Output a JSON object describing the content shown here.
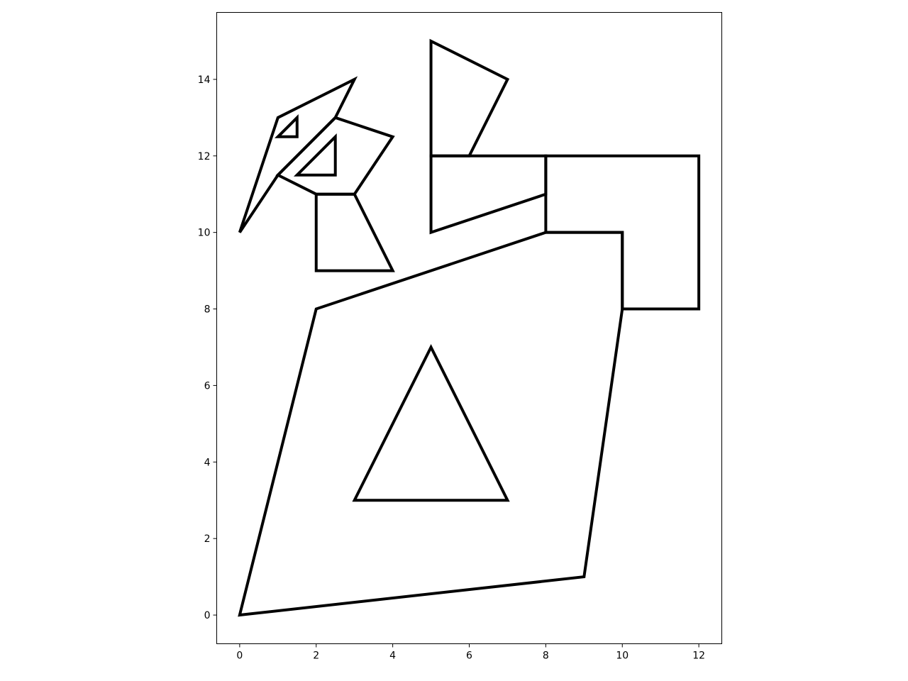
{
  "chart_data": {
    "type": "polygon-outline",
    "xlim": [
      -0.6,
      12.6
    ],
    "ylim": [
      -0.75,
      15.75
    ],
    "grid": false,
    "x_ticks": [
      {
        "value": 0,
        "label": "0"
      },
      {
        "value": 2,
        "label": "2"
      },
      {
        "value": 4,
        "label": "4"
      },
      {
        "value": 6,
        "label": "6"
      },
      {
        "value": 8,
        "label": "8"
      },
      {
        "value": 10,
        "label": "10"
      },
      {
        "value": 12,
        "label": "12"
      }
    ],
    "y_ticks": [
      {
        "value": 0,
        "label": "0"
      },
      {
        "value": 2,
        "label": "2"
      },
      {
        "value": 4,
        "label": "4"
      },
      {
        "value": 6,
        "label": "6"
      },
      {
        "value": 8,
        "label": "8"
      },
      {
        "value": 10,
        "label": "10"
      },
      {
        "value": 12,
        "label": "12"
      },
      {
        "value": 14,
        "label": "14"
      }
    ],
    "polygons": [
      {
        "name": "body",
        "points": [
          [
            0,
            0
          ],
          [
            9,
            1
          ],
          [
            10,
            8
          ],
          [
            10,
            10
          ],
          [
            8,
            10
          ],
          [
            2,
            8
          ]
        ]
      },
      {
        "name": "inner-triangle",
        "points": [
          [
            3,
            3
          ],
          [
            7,
            3
          ],
          [
            5,
            7
          ]
        ]
      },
      {
        "name": "tail",
        "points": [
          [
            8,
            12
          ],
          [
            12,
            12
          ],
          [
            12,
            8
          ],
          [
            10,
            8
          ],
          [
            10,
            10
          ],
          [
            8,
            10
          ]
        ]
      },
      {
        "name": "wing-quad",
        "points": [
          [
            5,
            12
          ],
          [
            8,
            12
          ],
          [
            8,
            11
          ],
          [
            5,
            10
          ]
        ]
      },
      {
        "name": "wing-top",
        "points": [
          [
            5,
            12
          ],
          [
            6,
            12
          ],
          [
            7,
            14
          ],
          [
            5,
            15
          ]
        ]
      },
      {
        "name": "neck",
        "points": [
          [
            2,
            9
          ],
          [
            4,
            9
          ],
          [
            3,
            11
          ],
          [
            2,
            11
          ]
        ]
      },
      {
        "name": "head",
        "points": [
          [
            2,
            11
          ],
          [
            3,
            11
          ],
          [
            4,
            12.5
          ],
          [
            2.5,
            13
          ],
          [
            1,
            11.5
          ]
        ]
      },
      {
        "name": "head-triangle",
        "points": [
          [
            1.5,
            11.5
          ],
          [
            2.5,
            11.5
          ],
          [
            2.5,
            12.5
          ]
        ]
      },
      {
        "name": "beak",
        "points": [
          [
            0,
            10
          ],
          [
            1,
            11.5
          ],
          [
            2.5,
            13
          ],
          [
            3,
            14
          ],
          [
            1,
            13
          ]
        ]
      },
      {
        "name": "eye",
        "points": [
          [
            1,
            12.5
          ],
          [
            1.5,
            12.5
          ],
          [
            1.5,
            13
          ]
        ]
      }
    ]
  }
}
